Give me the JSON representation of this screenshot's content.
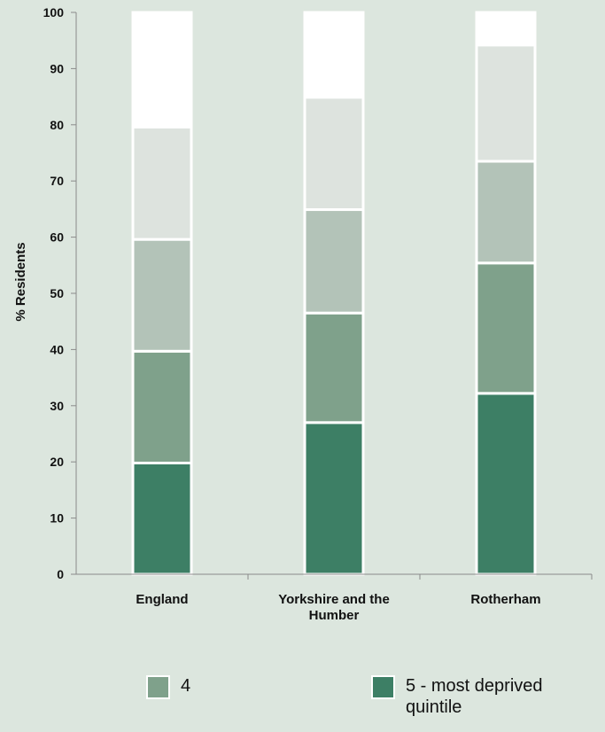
{
  "chart_data": {
    "type": "bar",
    "stacked": true,
    "categories": [
      "England",
      "Yorkshire and the Humber",
      "Rotherham"
    ],
    "ylabel": "% Residents",
    "ylim": [
      0,
      100
    ],
    "yticks": [
      0,
      10,
      20,
      30,
      40,
      50,
      60,
      70,
      80,
      90,
      100
    ],
    "grid": false,
    "legend_position": "bottom",
    "series": [
      {
        "name": "5 - most deprived quintile",
        "color": "#3d7f65",
        "values": [
          19.8,
          27.0,
          32.2
        ]
      },
      {
        "name": "4",
        "color": "#7fa18b",
        "values": [
          19.9,
          19.5,
          23.2
        ]
      },
      {
        "key": "q3",
        "color": "#b3c3b8",
        "values": [
          19.9,
          18.4,
          18.1
        ]
      },
      {
        "key": "q2",
        "color": "#dde3de",
        "values": [
          20.0,
          20.0,
          20.7
        ]
      },
      {
        "key": "q1",
        "color": "#ffffff",
        "values": [
          20.4,
          15.1,
          5.8
        ]
      }
    ]
  }
}
